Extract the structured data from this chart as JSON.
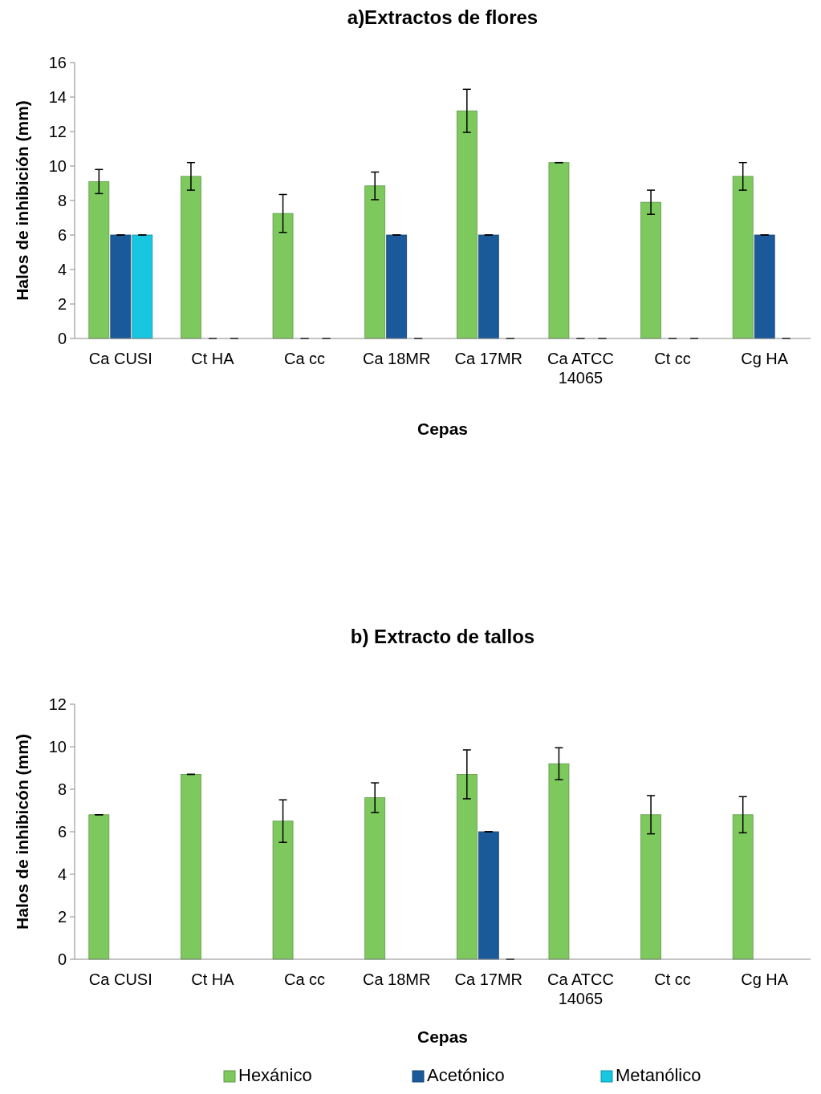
{
  "chart_data": [
    {
      "type": "bar",
      "title": "a)Extractos de flores",
      "xlabel": "Cepas",
      "ylabel": "Halos de inhibición (mm)",
      "categories": [
        "Ca CUSI",
        "Ct HA",
        "Ca cc",
        "Ca 18MR",
        "Ca 17MR",
        "Ca ATCC 14065",
        "Ct cc",
        "Cg HA"
      ],
      "ylim": [
        0,
        16
      ],
      "yticks": [
        0,
        2,
        4,
        6,
        8,
        10,
        12,
        14,
        16
      ],
      "grid": false,
      "legend": false,
      "series": [
        {
          "color": "#7dc95e",
          "values": [
            9.1,
            9.4,
            7.25,
            8.85,
            13.2,
            10.2,
            7.9,
            9.4
          ],
          "errors": [
            0.7,
            0.8,
            1.1,
            0.8,
            1.25,
            0,
            0.7,
            0.8
          ]
        },
        {
          "color": "#1a5a9a",
          "values": [
            6,
            0,
            0,
            6,
            6,
            0,
            0,
            6
          ],
          "errors": [
            0,
            0,
            0,
            0,
            0,
            0,
            0,
            0
          ]
        },
        {
          "color": "#17c6e0",
          "values": [
            6,
            0,
            0,
            0,
            0,
            0,
            0,
            0
          ],
          "errors": [
            0,
            0,
            0,
            0,
            0,
            0,
            0,
            0
          ]
        }
      ]
    },
    {
      "type": "bar",
      "title": "b) Extracto de tallos",
      "xlabel": "Cepas",
      "ylabel": "Halos de inhibicón (mm)",
      "categories": [
        "Ca CUSI",
        "Ct HA",
        "Ca cc",
        "Ca 18MR",
        "Ca 17MR",
        "Ca ATCC 14065",
        "Ct cc",
        "Cg HA"
      ],
      "ylim": [
        0,
        12
      ],
      "yticks": [
        0,
        2,
        4,
        6,
        8,
        10,
        12
      ],
      "grid": false,
      "legend": "bottom",
      "series": [
        {
          "name": "Hexánico",
          "color": "#7dc95e",
          "values": [
            6.8,
            8.7,
            6.5,
            7.6,
            8.7,
            9.2,
            6.8,
            6.8
          ],
          "errors": [
            0,
            0,
            1,
            0.7,
            1.15,
            0.75,
            0.9,
            0.85
          ]
        },
        {
          "name": "Acetónico",
          "color": "#1a5a9a",
          "values": [
            null,
            null,
            null,
            null,
            6,
            null,
            null,
            null
          ],
          "errors": [
            null,
            null,
            null,
            null,
            0,
            null,
            null,
            null
          ]
        },
        {
          "name": "Metanólico",
          "color": "#17c6e0",
          "values": [
            null,
            null,
            null,
            null,
            0,
            null,
            null,
            null
          ],
          "errors": [
            null,
            null,
            null,
            null,
            0,
            null,
            null,
            null
          ]
        }
      ]
    }
  ]
}
